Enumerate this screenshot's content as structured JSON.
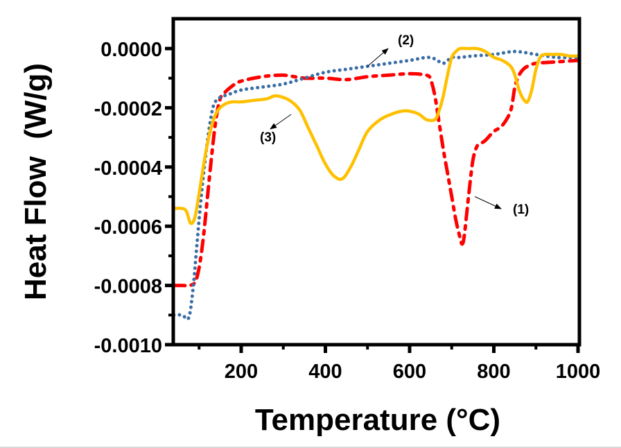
{
  "chart_data": {
    "type": "line",
    "title": "",
    "xlabel": "Temperature (°C)",
    "ylabel": "Heat Flow  (W/g)",
    "xlim": [
      40,
      1000
    ],
    "ylim": [
      -0.001,
      0.0001
    ],
    "xticks": [
      200,
      400,
      600,
      800,
      1000
    ],
    "xtick_labels": [
      "200",
      "400",
      "600",
      "800",
      "1000"
    ],
    "yticks": [
      0.0,
      -0.0002,
      -0.0004,
      -0.0006,
      -0.0008,
      -0.001
    ],
    "ytick_labels": [
      "0.0000",
      "-0.0002",
      "-0.0004",
      "-0.0006",
      "-0.0008",
      "-0.0010"
    ],
    "grid": false,
    "legend": "none",
    "series": [
      {
        "name": "(1)",
        "color": "#ff0000",
        "style": "dash-dot",
        "x": [
          40,
          60,
          75,
          90,
          100,
          110,
          120,
          130,
          140,
          150,
          160,
          180,
          200,
          250,
          300,
          350,
          400,
          450,
          500,
          550,
          600,
          640,
          650,
          660,
          670,
          680,
          690,
          700,
          710,
          720,
          725,
          730,
          740,
          750,
          760,
          770,
          780,
          800,
          820,
          840,
          850,
          860,
          870,
          880,
          900,
          950,
          1000
        ],
        "y": [
          -0.0008,
          -0.0008,
          -0.0008,
          -0.00079,
          -0.00074,
          -0.00064,
          -0.0005,
          -0.00036,
          -0.00024,
          -0.00017,
          -0.00015,
          -0.000125,
          -0.00011,
          -9.5e-05,
          -9e-05,
          -0.0001,
          -0.0001,
          -0.000105,
          -9.5e-05,
          -9e-05,
          -8.5e-05,
          -9e-05,
          -0.000105,
          -0.00016,
          -0.00025,
          -0.00034,
          -0.00042,
          -0.0005,
          -0.00058,
          -0.00064,
          -0.00066,
          -0.00063,
          -0.0005,
          -0.00038,
          -0.00033,
          -0.00032,
          -0.00031,
          -0.00028,
          -0.00026,
          -0.00021,
          -0.00013,
          -9e-05,
          -7e-05,
          -6e-05,
          -5e-05,
          -4.5e-05,
          -4e-05
        ]
      },
      {
        "name": "(2)",
        "color": "#3a6ea5",
        "style": "dotted",
        "x": [
          40,
          60,
          75,
          85,
          95,
          105,
          115,
          125,
          135,
          150,
          170,
          200,
          250,
          300,
          350,
          400,
          450,
          500,
          550,
          600,
          640,
          660,
          680,
          700,
          720,
          750,
          800,
          850,
          900,
          950,
          1000
        ],
        "y": [
          -0.0009,
          -0.0009,
          -0.00091,
          -0.00082,
          -0.00066,
          -0.0005,
          -0.00037,
          -0.00026,
          -0.00019,
          -0.000165,
          -0.000155,
          -0.00014,
          -0.00013,
          -0.00012,
          -0.0001,
          -8e-05,
          -7e-05,
          -6e-05,
          -5e-05,
          -4e-05,
          -3e-05,
          -3.5e-05,
          -5e-05,
          -3e-05,
          -3e-05,
          -2.5e-05,
          -2e-05,
          -1e-05,
          -2e-05,
          -3e-05,
          -3e-05
        ]
      },
      {
        "name": "(3)",
        "color": "#ffc000",
        "style": "solid",
        "x": [
          40,
          60,
          70,
          80,
          90,
          100,
          110,
          120,
          130,
          140,
          150,
          165,
          180,
          200,
          230,
          260,
          280,
          300,
          320,
          340,
          360,
          380,
          400,
          420,
          440,
          460,
          480,
          500,
          530,
          560,
          590,
          620,
          640,
          660,
          670,
          680,
          690,
          700,
          710,
          720,
          740,
          760,
          780,
          800,
          820,
          840,
          850,
          860,
          870,
          880,
          890,
          900,
          910,
          920,
          940,
          960,
          980,
          1000
        ],
        "y": [
          -0.00054,
          -0.00054,
          -0.00055,
          -0.00059,
          -0.00057,
          -0.00049,
          -0.0004,
          -0.00032,
          -0.00026,
          -0.00022,
          -0.0002,
          -0.000185,
          -0.00018,
          -0.00018,
          -0.000175,
          -0.00017,
          -0.00016,
          -0.000165,
          -0.00018,
          -0.00021,
          -0.00027,
          -0.00033,
          -0.00039,
          -0.00043,
          -0.00044,
          -0.0004,
          -0.00034,
          -0.00028,
          -0.00024,
          -0.00022,
          -0.00021,
          -0.00022,
          -0.00024,
          -0.00024,
          -0.00021,
          -0.00016,
          -9e-05,
          -3e-05,
          -1e-05,
          0.0,
          0.0,
          0.0,
          -1e-05,
          -3e-05,
          -4e-05,
          -6e-05,
          -9e-05,
          -0.00014,
          -0.00017,
          -0.00018,
          -0.00014,
          -7e-05,
          -3e-05,
          -2e-05,
          -2e-05,
          -2e-05,
          -2.5e-05,
          -2.5e-05
        ]
      }
    ],
    "annotations": [
      {
        "text": "(1)",
        "arrow_to_x": 755,
        "arrow_to_y": -0.0005
      },
      {
        "text": "(2)",
        "arrow_to_x": 500,
        "arrow_to_y": -6e-05
      },
      {
        "text": "(3)",
        "arrow_to_x": 300,
        "arrow_to_y": -0.00019
      }
    ]
  }
}
